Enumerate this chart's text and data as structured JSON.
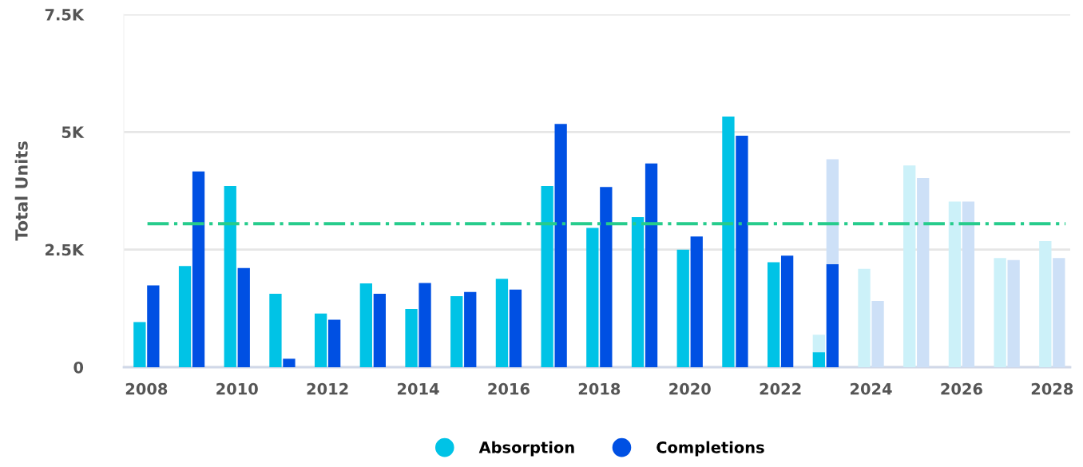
{
  "chart_data": {
    "type": "bar",
    "ylabel": "Total Units",
    "x": [
      2008,
      2009,
      2010,
      2011,
      2012,
      2013,
      2014,
      2015,
      2016,
      2017,
      2018,
      2019,
      2020,
      2021,
      2022,
      2023,
      2024,
      2025,
      2026,
      2027,
      2028
    ],
    "series": [
      {
        "name": "Absorption",
        "color": "#00c3e6",
        "values": [
          960,
          2150,
          3850,
          1560,
          1140,
          1780,
          1240,
          1510,
          1880,
          3850,
          2960,
          3190,
          2500,
          5330,
          2230,
          320,
          null,
          null,
          null,
          null,
          null
        ]
      },
      {
        "name": "Completions",
        "color": "#0050e3",
        "values": [
          1740,
          4160,
          2110,
          180,
          1010,
          1560,
          1790,
          1600,
          1650,
          5170,
          3830,
          4330,
          2780,
          4920,
          2370,
          2190,
          null,
          null,
          null,
          null,
          null
        ]
      },
      {
        "color": "#ccf1f9",
        "base": [
          null,
          null,
          null,
          null,
          null,
          null,
          null,
          null,
          null,
          null,
          null,
          null,
          null,
          null,
          null,
          320,
          0,
          0,
          0,
          0,
          0
        ],
        "values": [
          null,
          null,
          null,
          null,
          null,
          null,
          null,
          null,
          null,
          null,
          null,
          null,
          null,
          null,
          null,
          370,
          2090,
          4290,
          3520,
          2320,
          2680
        ]
      },
      {
        "color": "#cde0f7",
        "base": [
          null,
          null,
          null,
          null,
          null,
          null,
          null,
          null,
          null,
          null,
          null,
          null,
          null,
          null,
          null,
          2190,
          0,
          0,
          0,
          0,
          0
        ],
        "values": [
          null,
          null,
          null,
          null,
          null,
          null,
          null,
          null,
          null,
          null,
          null,
          null,
          null,
          null,
          null,
          2230,
          1410,
          4020,
          3520,
          2280,
          2320
        ]
      }
    ],
    "xlim": [
      2007.5,
      2028.4
    ],
    "xticks": [
      2008,
      2010,
      2012,
      2014,
      2016,
      2018,
      2020,
      2022,
      2024,
      2026,
      2028
    ],
    "ylim": [
      0,
      7500
    ],
    "yticks": [
      {
        "value": 0,
        "label": "0"
      },
      {
        "value": 2500,
        "label": "2.5K"
      },
      {
        "value": 5000,
        "label": "5K"
      },
      {
        "value": 7500,
        "label": "7.5K"
      }
    ],
    "ref_lines": [
      {
        "axis": "y",
        "value": 3050,
        "color": "#26cc8c",
        "line_style": "dashdot"
      }
    ],
    "grid": "y",
    "legend": "bottom"
  }
}
